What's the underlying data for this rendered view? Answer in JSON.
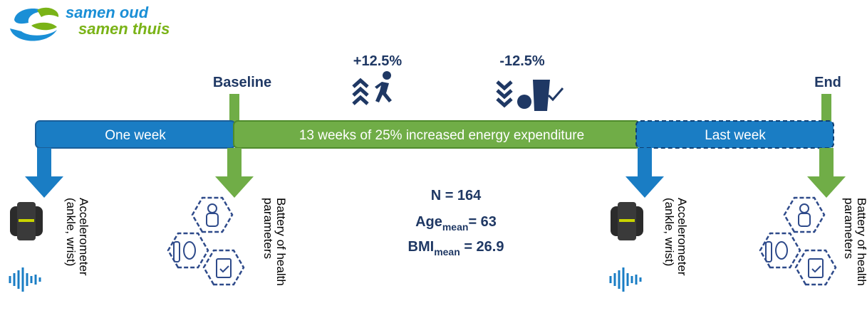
{
  "logo": {
    "line1": "samen oud",
    "line2": "samen thuis"
  },
  "changes": [
    {
      "label": "+12.5%"
    },
    {
      "label": "-12.5%"
    }
  ],
  "milestones": {
    "start": "Baseline",
    "end": "End"
  },
  "phases": [
    "One week",
    "13 weeks of 25% increased energy expenditure",
    "Last week"
  ],
  "stats": {
    "n": "N = 164",
    "age": {
      "name": "Age",
      "sub": "mean",
      "value": "= 63"
    },
    "bmi": {
      "name": "BMI",
      "sub": "mean",
      "value": " = 26.9"
    }
  },
  "measurements": [
    {
      "line1": "Accelerometer",
      "line2": "(ankle, wrist)"
    },
    {
      "line1": "Battery of health",
      "line2": "parameters"
    },
    {
      "line1": "Accelerometer",
      "line2": "(ankle, wrist)"
    },
    {
      "line1": "Battery of health",
      "line2": "parameters"
    }
  ]
}
